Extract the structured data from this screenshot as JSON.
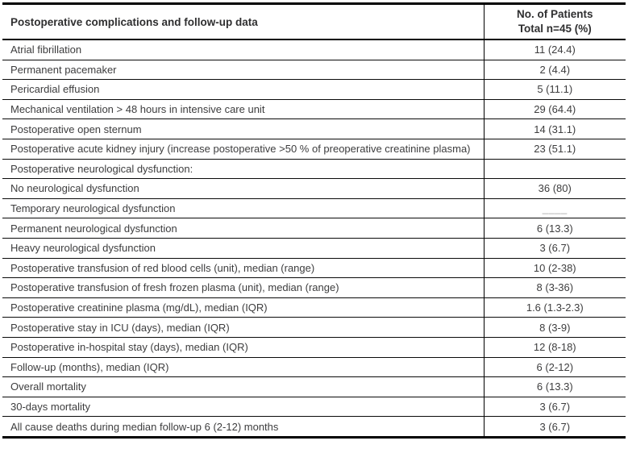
{
  "table": {
    "title_col_header": "Postoperative complications and follow-up data",
    "value_col_header_line1": "No. of Patients",
    "value_col_header_line2": "Total n=45 (%)",
    "rows": [
      {
        "label": "Atrial fibrillation",
        "value": "11 (24.4)"
      },
      {
        "label": "Permanent pacemaker",
        "value": "2 (4.4)"
      },
      {
        "label": "Pericardial effusion",
        "value": "5 (11.1)"
      },
      {
        "label": "Mechanical ventilation > 48 hours in intensive care unit",
        "value": "29 (64.4)"
      },
      {
        "label": "Postoperative open sternum",
        "value": "14 (31.1)"
      },
      {
        "label": "Postoperative acute kidney injury (increase postoperative >50 % of preoperative creatinine plasma)",
        "value": "23 (51.1)"
      },
      {
        "label": "Postoperative neurological dysfunction:",
        "value": ""
      },
      {
        "label": "No neurological dysfunction",
        "value": "36 (80)"
      },
      {
        "label": "Temporary neurological dysfunction",
        "value": "____",
        "muted": true
      },
      {
        "label": "Permanent neurological dysfunction",
        "value": "6 (13.3)"
      },
      {
        "label": "Heavy neurological dysfunction",
        "value": "3 (6.7)"
      },
      {
        "label": "Postoperative transfusion of red blood cells (unit), median (range)",
        "value": "10 (2-38)"
      },
      {
        "label": "Postoperative transfusion of fresh frozen plasma (unit), median (range)",
        "value": "8 (3-36)"
      },
      {
        "label": "Postoperative creatinine plasma (mg/dL), median (IQR)",
        "value": "1.6 (1.3-2.3)"
      },
      {
        "label": "Postoperative stay in ICU (days), median (IQR)",
        "value": "8 (3-9)"
      },
      {
        "label": "Postoperative in-hospital stay (days), median (IQR)",
        "value": "12 (8-18)"
      },
      {
        "label": "Follow-up (months), median (IQR)",
        "value": "6 (2-12)"
      },
      {
        "label": "Overall mortality",
        "value": "6 (13.3)"
      },
      {
        "label": "30-days mortality",
        "value": "3 (6.7)"
      },
      {
        "label": "All cause deaths during median follow-up 6 (2-12) months",
        "value": "3 (6.7)"
      }
    ]
  },
  "chart_data": {
    "type": "table",
    "columns": [
      "Postoperative complications and follow-up data",
      "No. of Patients Total n=45 (%)"
    ],
    "rows": [
      [
        "Atrial fibrillation",
        "11 (24.4)"
      ],
      [
        "Permanent pacemaker",
        "2 (4.4)"
      ],
      [
        "Pericardial effusion",
        "5 (11.1)"
      ],
      [
        "Mechanical ventilation > 48 hours in intensive care unit",
        "29 (64.4)"
      ],
      [
        "Postoperative open sternum",
        "14 (31.1)"
      ],
      [
        "Postoperative acute kidney injury (increase postoperative >50 % of preoperative creatinine plasma)",
        "23 (51.1)"
      ],
      [
        "Postoperative neurological dysfunction:",
        ""
      ],
      [
        "No neurological dysfunction",
        "36 (80)"
      ],
      [
        "Temporary neurological dysfunction",
        "____"
      ],
      [
        "Permanent neurological dysfunction",
        "6 (13.3)"
      ],
      [
        "Heavy neurological dysfunction",
        "3 (6.7)"
      ],
      [
        "Postoperative transfusion of red blood cells (unit), median (range)",
        "10 (2-38)"
      ],
      [
        "Postoperative transfusion of fresh frozen plasma (unit), median (range)",
        "8 (3-36)"
      ],
      [
        "Postoperative creatinine plasma (mg/dL), median (IQR)",
        "1.6 (1.3-2.3)"
      ],
      [
        "Postoperative stay in ICU (days), median (IQR)",
        "8 (3-9)"
      ],
      [
        "Postoperative in-hospital stay (days), median (IQR)",
        "12 (8-18)"
      ],
      [
        "Follow-up (months), median (IQR)",
        "6 (2-12)"
      ],
      [
        "Overall mortality",
        "6 (13.3)"
      ],
      [
        "30-days mortality",
        "3 (6.7)"
      ],
      [
        "All cause deaths during median follow-up 6 (2-12) months",
        "3 (6.7)"
      ]
    ]
  },
  "colors": {
    "text": "#3d3d3e",
    "header_text": "#2f2f30",
    "rule": "#000000",
    "muted_value": "#a9a9a9"
  }
}
